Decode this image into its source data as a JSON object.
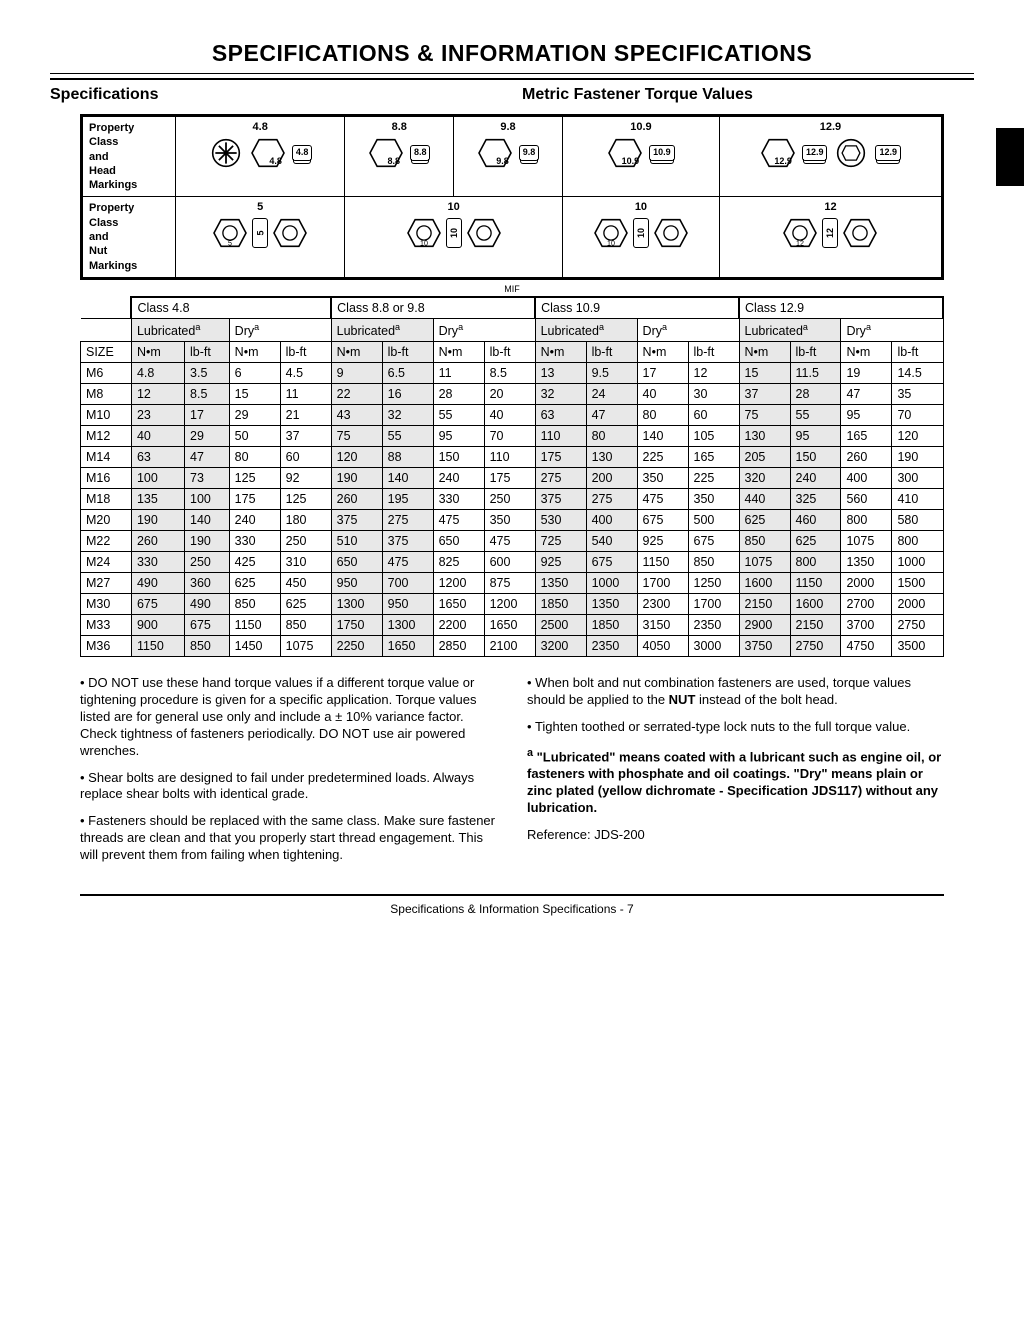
{
  "page_title": "SPECIFICATIONS & INFORMATION   SPECIFICATIONS",
  "left_heading": "Specifications",
  "right_heading": "Metric Fastener Torque Values",
  "diagram": {
    "row1_label": "Property\nClass\nand\nHead\nMarkings",
    "row2_label": "Property\nClass\nand\nNut\nMarkings",
    "head_classes": [
      "4.8",
      "8.8",
      "9.8",
      "10.9",
      "12.9"
    ],
    "nut_classes": [
      "5",
      "10",
      "10",
      "12"
    ],
    "mif": "MIF"
  },
  "table": {
    "class_headers": [
      "Class 4.8",
      "Class 8.8 or 9.8",
      "Class 10.9",
      "Class 12.9"
    ],
    "cond_lub": "Lubricated",
    "cond_dry": "Dry",
    "sup": "a",
    "unit_nm": "N•m",
    "unit_lbft": "lb-ft",
    "size_label": "SIZE",
    "rows": [
      [
        "M6",
        "4.8",
        "3.5",
        "6",
        "4.5",
        "9",
        "6.5",
        "11",
        "8.5",
        "13",
        "9.5",
        "17",
        "12",
        "15",
        "11.5",
        "19",
        "14.5"
      ],
      [
        "M8",
        "12",
        "8.5",
        "15",
        "11",
        "22",
        "16",
        "28",
        "20",
        "32",
        "24",
        "40",
        "30",
        "37",
        "28",
        "47",
        "35"
      ],
      [
        "M10",
        "23",
        "17",
        "29",
        "21",
        "43",
        "32",
        "55",
        "40",
        "63",
        "47",
        "80",
        "60",
        "75",
        "55",
        "95",
        "70"
      ],
      [
        "M12",
        "40",
        "29",
        "50",
        "37",
        "75",
        "55",
        "95",
        "70",
        "110",
        "80",
        "140",
        "105",
        "130",
        "95",
        "165",
        "120"
      ],
      [
        "M14",
        "63",
        "47",
        "80",
        "60",
        "120",
        "88",
        "150",
        "110",
        "175",
        "130",
        "225",
        "165",
        "205",
        "150",
        "260",
        "190"
      ],
      [
        "M16",
        "100",
        "73",
        "125",
        "92",
        "190",
        "140",
        "240",
        "175",
        "275",
        "200",
        "350",
        "225",
        "320",
        "240",
        "400",
        "300"
      ],
      [
        "M18",
        "135",
        "100",
        "175",
        "125",
        "260",
        "195",
        "330",
        "250",
        "375",
        "275",
        "475",
        "350",
        "440",
        "325",
        "560",
        "410"
      ],
      [
        "M20",
        "190",
        "140",
        "240",
        "180",
        "375",
        "275",
        "475",
        "350",
        "530",
        "400",
        "675",
        "500",
        "625",
        "460",
        "800",
        "580"
      ],
      [
        "M22",
        "260",
        "190",
        "330",
        "250",
        "510",
        "375",
        "650",
        "475",
        "725",
        "540",
        "925",
        "675",
        "850",
        "625",
        "1075",
        "800"
      ],
      [
        "M24",
        "330",
        "250",
        "425",
        "310",
        "650",
        "475",
        "825",
        "600",
        "925",
        "675",
        "1150",
        "850",
        "1075",
        "800",
        "1350",
        "1000"
      ],
      [
        "M27",
        "490",
        "360",
        "625",
        "450",
        "950",
        "700",
        "1200",
        "875",
        "1350",
        "1000",
        "1700",
        "1250",
        "1600",
        "1150",
        "2000",
        "1500"
      ],
      [
        "M30",
        "675",
        "490",
        "850",
        "625",
        "1300",
        "950",
        "1650",
        "1200",
        "1850",
        "1350",
        "2300",
        "1700",
        "2150",
        "1600",
        "2700",
        "2000"
      ],
      [
        "M33",
        "900",
        "675",
        "1150",
        "850",
        "1750",
        "1300",
        "2200",
        "1650",
        "2500",
        "1850",
        "3150",
        "2350",
        "2900",
        "2150",
        "3700",
        "2750"
      ],
      [
        "M36",
        "1150",
        "850",
        "1450",
        "1075",
        "2250",
        "1650",
        "2850",
        "2100",
        "3200",
        "2350",
        "4050",
        "3000",
        "3750",
        "2750",
        "4750",
        "3500"
      ]
    ],
    "shaded_cols": [
      1,
      2,
      5,
      6,
      9,
      10,
      13,
      14
    ]
  },
  "notes": {
    "p1": "DO NOT use these hand torque values if a different torque value or tightening procedure is given for a specific application. Torque values listed are for general use only and include a ± 10% variance factor. Check tightness of fasteners periodically. DO NOT use air powered wrenches.",
    "p2": "Shear bolts are designed to fail under predetermined loads. Always replace shear bolts with identical grade.",
    "p3": "Fasteners should be replaced with the same class. Make sure fastener threads are clean and that you properly start thread engagement. This will prevent them from failing when tightening.",
    "p4_a": "When bolt and nut combination fasteners are used, torque values should be applied to the ",
    "p4_b": "NUT",
    "p4_c": " instead of the bolt head.",
    "p5": "Tighten toothed or serrated-type lock nuts to the full torque value.",
    "p6_sup": "a",
    "p6": " \"Lubricated\" means coated with a lubricant such as engine oil, or fasteners with phosphate and oil coatings. \"Dry\" means plain or zinc plated (yellow dichromate - Specification JDS117) without any lubrication.",
    "ref": "Reference: JDS-200"
  },
  "footer": "Specifications & Information   Specifications  - 7"
}
